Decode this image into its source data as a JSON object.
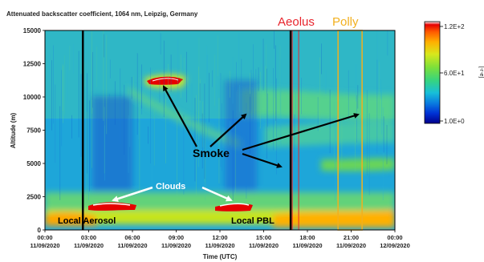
{
  "chart_data": {
    "type": "heatmap",
    "title": "Attenuated backscatter coefficient, 1064 nm, Leipzig, Germany",
    "xlabel": "Time (UTC)",
    "ylabel": "Altitude (m)",
    "xticks": [
      {
        "time": "00:00",
        "date": "11/09/2020"
      },
      {
        "time": "03:00",
        "date": "11/09/2020"
      },
      {
        "time": "06:00",
        "date": "11/09/2020"
      },
      {
        "time": "09:00",
        "date": "11/09/2020"
      },
      {
        "time": "12:00",
        "date": "11/09/2020"
      },
      {
        "time": "15:00",
        "date": "11/09/2020"
      },
      {
        "time": "18:00",
        "date": "11/09/2020"
      },
      {
        "time": "21:00",
        "date": "11/09/2020"
      },
      {
        "time": "00:00",
        "date": "12/09/2020"
      }
    ],
    "xlim_hours": [
      0,
      24
    ],
    "yticks": [
      0,
      2500,
      5000,
      7500,
      10000,
      12500,
      15000
    ],
    "ylim": [
      0,
      15000
    ],
    "colorbar": {
      "scale": "log",
      "min_label": "1.0E+0",
      "mid_label": "6.0E+1",
      "max_label": "1.2E+2",
      "unit": "[-r-e]",
      "colors": [
        "#00008c",
        "#0033d6",
        "#0a7de0",
        "#17bfd9",
        "#36d480",
        "#7ce03a",
        "#d8e81c",
        "#ffb000",
        "#ff5a00",
        "#e60000",
        "#ffffff"
      ]
    },
    "markers": {
      "aerosol_line_hours": 2.6,
      "aeolus_line_hours": 16.85,
      "aeolus_label": "Aeolus",
      "aeolus_color": "#e8242c",
      "polly_label": "Polly",
      "polly_color": "#f2b01e",
      "polly_box_hours": [
        20.1,
        21.75
      ]
    },
    "annotations": {
      "smoke": "Smoke",
      "clouds": "Clouds",
      "local_aerosol": "Local Aerosol",
      "local_pbl": "Local PBL"
    }
  }
}
